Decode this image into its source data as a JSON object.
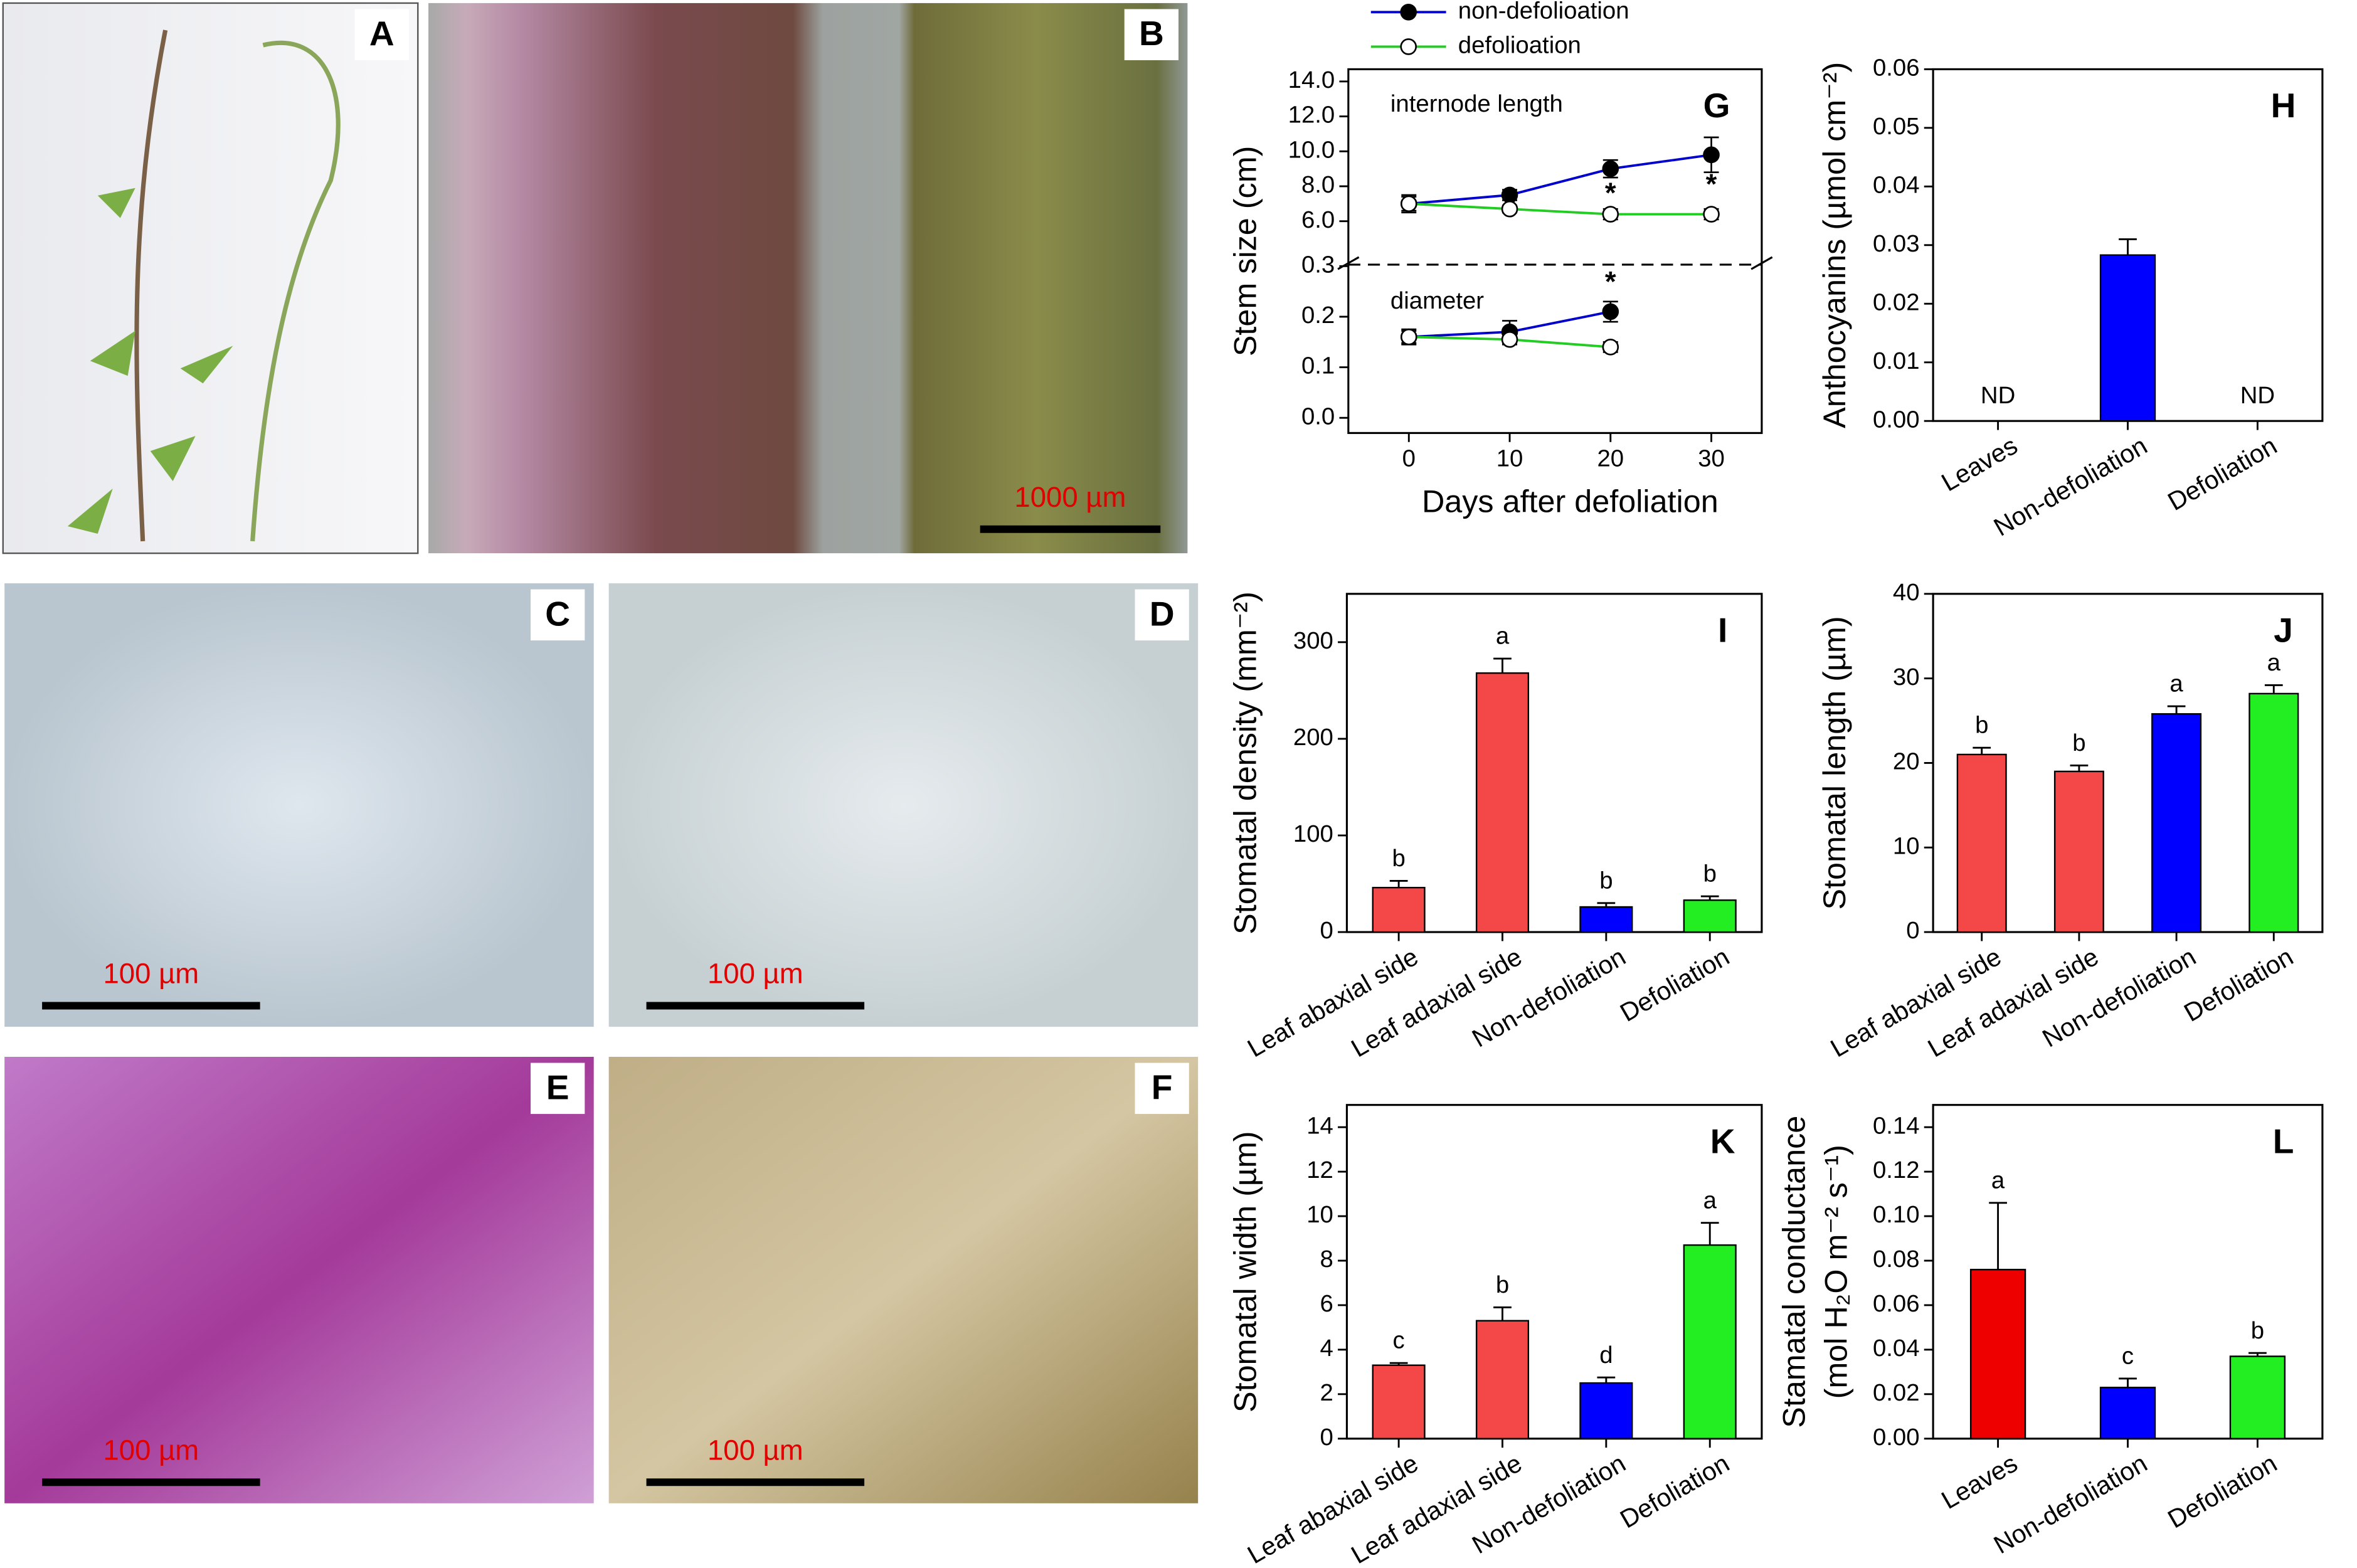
{
  "photo_panels": [
    {
      "label": "A"
    },
    {
      "label": "B",
      "scale_bar": "1000 µm"
    },
    {
      "label": "C",
      "scale_bar": "100 µm"
    },
    {
      "label": "D",
      "scale_bar": "100 µm"
    },
    {
      "label": "E",
      "scale_bar": "100 µm"
    },
    {
      "label": "F",
      "scale_bar": "100 µm"
    }
  ],
  "chart_data": [
    {
      "type": "broken-line",
      "panel_label": "G",
      "y_label": "Stem size (cm)",
      "x_label": "Days after defoliation",
      "x": [
        0,
        10,
        20,
        30
      ],
      "xlim": [
        -6,
        35
      ],
      "xticks": [
        0,
        10,
        20,
        30
      ],
      "series": [
        {
          "name": "non-defolioation",
          "color": "#0000cc",
          "marker_fill": "#000000"
        },
        {
          "name": "defolioation",
          "color": "#22cc22",
          "marker_fill": "#ffffff"
        }
      ],
      "segments": [
        {
          "label": "internode length",
          "ylim": [
            3.6,
            14.7
          ],
          "yticks": [
            {
              "value": 6,
              "label": "6.0"
            },
            {
              "value": 8,
              "label": "8.0"
            },
            {
              "value": 10,
              "label": "10.0"
            },
            {
              "value": 12,
              "label": "12.0"
            },
            {
              "value": 14,
              "label": "14.0"
            }
          ],
          "values": [
            [
              7.0,
              7.5,
              9.0,
              9.8
            ],
            [
              7.0,
              6.7,
              6.4,
              6.4
            ]
          ],
          "errors": [
            [
              0.5,
              0.3,
              0.5,
              1.0
            ],
            [
              0.4,
              0.2,
              0.3,
              0.3
            ]
          ],
          "annotations": [
            {
              "x": 20,
              "y": 7.5,
              "text": "*"
            },
            {
              "x": 30,
              "y": 8.0,
              "text": "*"
            }
          ]
        },
        {
          "label": "diameter",
          "ylim": [
            -0.03,
            0.3
          ],
          "yticks": [
            {
              "value": 0,
              "label": "0.0"
            },
            0.1,
            0.2,
            0.3
          ],
          "values": [
            [
              0.16,
              0.17,
              0.21,
              null
            ],
            [
              0.16,
              0.155,
              0.14,
              null
            ]
          ],
          "errors": [
            [
              0.015,
              0.022,
              0.02,
              null
            ],
            [
              0.012,
              0.01,
              0.01,
              null
            ]
          ],
          "annotations": [
            {
              "x": 20,
              "y": 0.265,
              "text": "*"
            }
          ]
        }
      ]
    },
    {
      "type": "bar",
      "panel_label": "H",
      "y_label": [
        "Anthocyanins (µmol cm⁻²)"
      ],
      "categories": [
        "Leaves",
        "Non-defoliation",
        "Defoliation"
      ],
      "values": [
        null,
        0.0283,
        null
      ],
      "value_labels": [
        "ND",
        null,
        "ND"
      ],
      "errors": [
        null,
        0.0027,
        null
      ],
      "colors": [
        "#0000ff",
        "#0000ff",
        "#0000ff"
      ],
      "ylim": [
        0,
        0.06
      ],
      "yticks": [
        {
          "value": 0,
          "label": "0.00"
        },
        0.01,
        0.02,
        0.03,
        0.04,
        0.05,
        0.06
      ]
    },
    {
      "type": "bar",
      "panel_label": "I",
      "y_label": [
        "Stomatal density (mm⁻²)"
      ],
      "categories": [
        "Leaf abaxial side",
        "Leaf adaxial side",
        "Non-defoliation",
        "Defoliation"
      ],
      "values": [
        46,
        268,
        26,
        33
      ],
      "errors": [
        7,
        15,
        4,
        4
      ],
      "letters": [
        "b",
        "a",
        "b",
        "b"
      ],
      "colors": [
        "#f44848",
        "#f44848",
        "#0000ff",
        "#22ee22"
      ],
      "ylim": [
        0,
        350
      ],
      "yticks": [
        0,
        100,
        200,
        300
      ]
    },
    {
      "type": "bar",
      "panel_label": "J",
      "y_label": [
        "Stomatal length (µm)"
      ],
      "categories": [
        "Leaf abaxial side",
        "Leaf adaxial side",
        "Non-defoliation",
        "Defoliation"
      ],
      "values": [
        21,
        19,
        25.8,
        28.2
      ],
      "errors": [
        0.8,
        0.7,
        0.9,
        1.0
      ],
      "letters": [
        "b",
        "b",
        "a",
        "a"
      ],
      "colors": [
        "#f44848",
        "#f44848",
        "#0000ff",
        "#22ee22"
      ],
      "ylim": [
        0,
        40
      ],
      "yticks": [
        0,
        10,
        20,
        30,
        40
      ]
    },
    {
      "type": "bar",
      "panel_label": "K",
      "y_label": [
        "Stomatal width (µm)"
      ],
      "categories": [
        "Leaf abaxial side",
        "Leaf adaxial side",
        "Non-defoliation",
        "Defoliation"
      ],
      "values": [
        3.3,
        5.3,
        2.5,
        8.7
      ],
      "errors": [
        0.1,
        0.6,
        0.25,
        1.0
      ],
      "letters": [
        "c",
        "b",
        "d",
        "a"
      ],
      "colors": [
        "#f44848",
        "#f44848",
        "#0000ff",
        "#22ee22"
      ],
      "ylim": [
        0,
        15
      ],
      "yticks": [
        0,
        2,
        4,
        6,
        8,
        10,
        12,
        14
      ]
    },
    {
      "type": "bar",
      "panel_label": "L",
      "y_label": [
        "Stamatal conductance",
        "(mol H₂O m⁻² s⁻¹)"
      ],
      "categories": [
        "Leaves",
        "Non-defoliation",
        "Defoliation"
      ],
      "values": [
        0.076,
        0.023,
        0.037
      ],
      "errors": [
        0.03,
        0.004,
        0.0015
      ],
      "letters": [
        "a",
        "c",
        "b"
      ],
      "colors": [
        "#ee0000",
        "#0000ff",
        "#22ee22"
      ],
      "ylim": [
        0,
        0.15
      ],
      "yticks": [
        {
          "value": 0,
          "label": "0.00"
        },
        0.02,
        0.04,
        0.06,
        0.08,
        {
          "value": 0.1,
          "label": "0.10"
        },
        0.12,
        0.14
      ]
    }
  ]
}
